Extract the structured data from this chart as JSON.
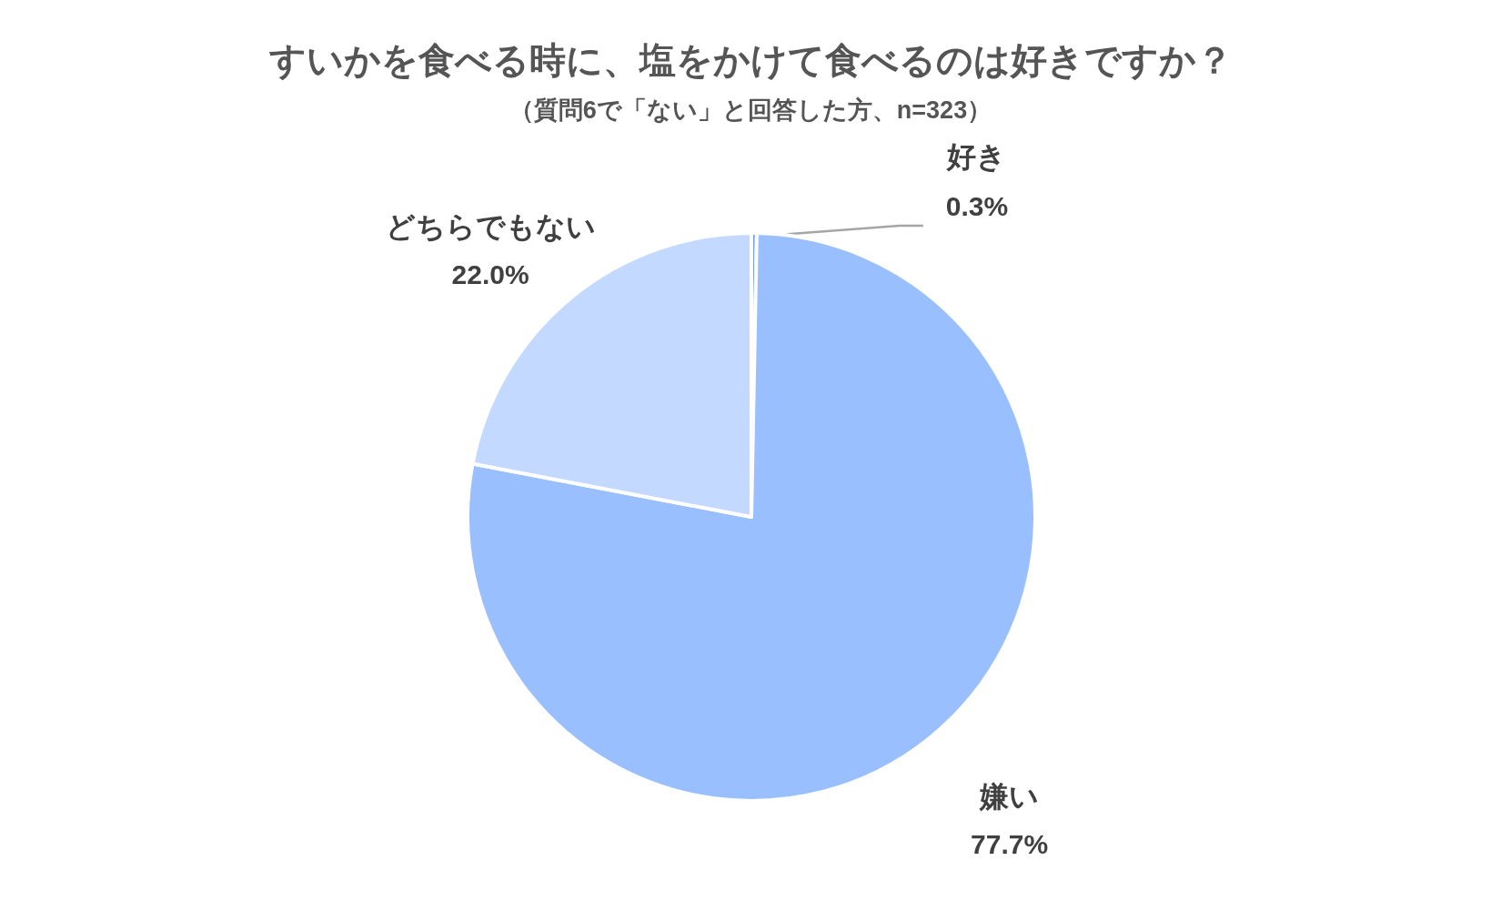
{
  "chart_data": {
    "type": "pie",
    "title": "すいかを食べる時に、塩をかけて食べるのは好きですか？",
    "subtitle": "（質問6で「ない」と回答した方、n=323）",
    "categories": [
      "好き",
      "嫌い",
      "どちらでもない"
    ],
    "values": [
      0.3,
      77.7,
      22.0
    ],
    "colors": [
      "#6f9ff0",
      "#99bfff",
      "#c3d9ff"
    ],
    "value_labels": [
      "0.3%",
      "77.7%",
      "22.0%"
    ]
  }
}
